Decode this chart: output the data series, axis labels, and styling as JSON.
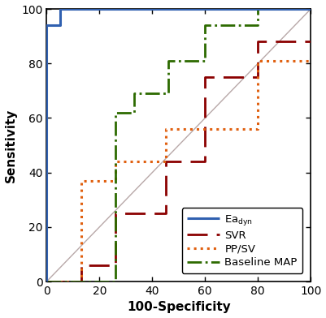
{
  "title": "",
  "xlabel": "100-Specificity",
  "ylabel": "Sensitivity",
  "xlim": [
    0,
    100
  ],
  "ylim": [
    0,
    100
  ],
  "xticks": [
    0,
    20,
    40,
    60,
    80,
    100
  ],
  "yticks": [
    0,
    20,
    40,
    60,
    80,
    100
  ],
  "reference_line": {
    "x": [
      0,
      100
    ],
    "y": [
      0,
      100
    ],
    "color": "#b8a8a8",
    "lw": 1.0
  },
  "curves": [
    {
      "name": "Ea_dyn",
      "label": "Ea$_{\\rm dyn}$",
      "color": "#3060b0",
      "linestyle": "solid",
      "lw": 2.2,
      "x": [
        0,
        0,
        5,
        5,
        100
      ],
      "y": [
        0,
        94,
        94,
        100,
        100
      ]
    },
    {
      "name": "SVR",
      "label": "SVR",
      "color": "#8b0000",
      "linestyle": "dashed",
      "lw": 2.0,
      "dashes": [
        9,
        4
      ],
      "x": [
        0,
        13,
        13,
        26,
        26,
        45,
        45,
        60,
        60,
        80,
        80,
        100
      ],
      "y": [
        0,
        0,
        6,
        6,
        25,
        25,
        44,
        44,
        75,
        75,
        88,
        88
      ]
    },
    {
      "name": "PP/SV",
      "label": "PP/SV",
      "color": "#e06010",
      "linestyle": "dotted",
      "lw": 2.2,
      "x": [
        0,
        13,
        13,
        26,
        26,
        45,
        45,
        80,
        80,
        93,
        93,
        100
      ],
      "y": [
        0,
        0,
        37,
        37,
        44,
        44,
        56,
        56,
        81,
        81,
        81,
        81
      ]
    },
    {
      "name": "Baseline MAP",
      "label": "Baseline MAP",
      "color": "#2d6a00",
      "linestyle": "dashdot",
      "lw": 2.0,
      "x": [
        0,
        26,
        26,
        33,
        33,
        46,
        46,
        60,
        60,
        80,
        80,
        93,
        93,
        100
      ],
      "y": [
        0,
        0,
        62,
        62,
        69,
        69,
        81,
        81,
        94,
        94,
        100,
        100,
        100,
        100
      ]
    }
  ],
  "legend_fontsize": 9.5,
  "figsize": [
    4.01,
    3.92
  ],
  "dpi": 100,
  "bg_color": "#ffffff",
  "tick_fontsize": 10,
  "label_fontsize": 11
}
